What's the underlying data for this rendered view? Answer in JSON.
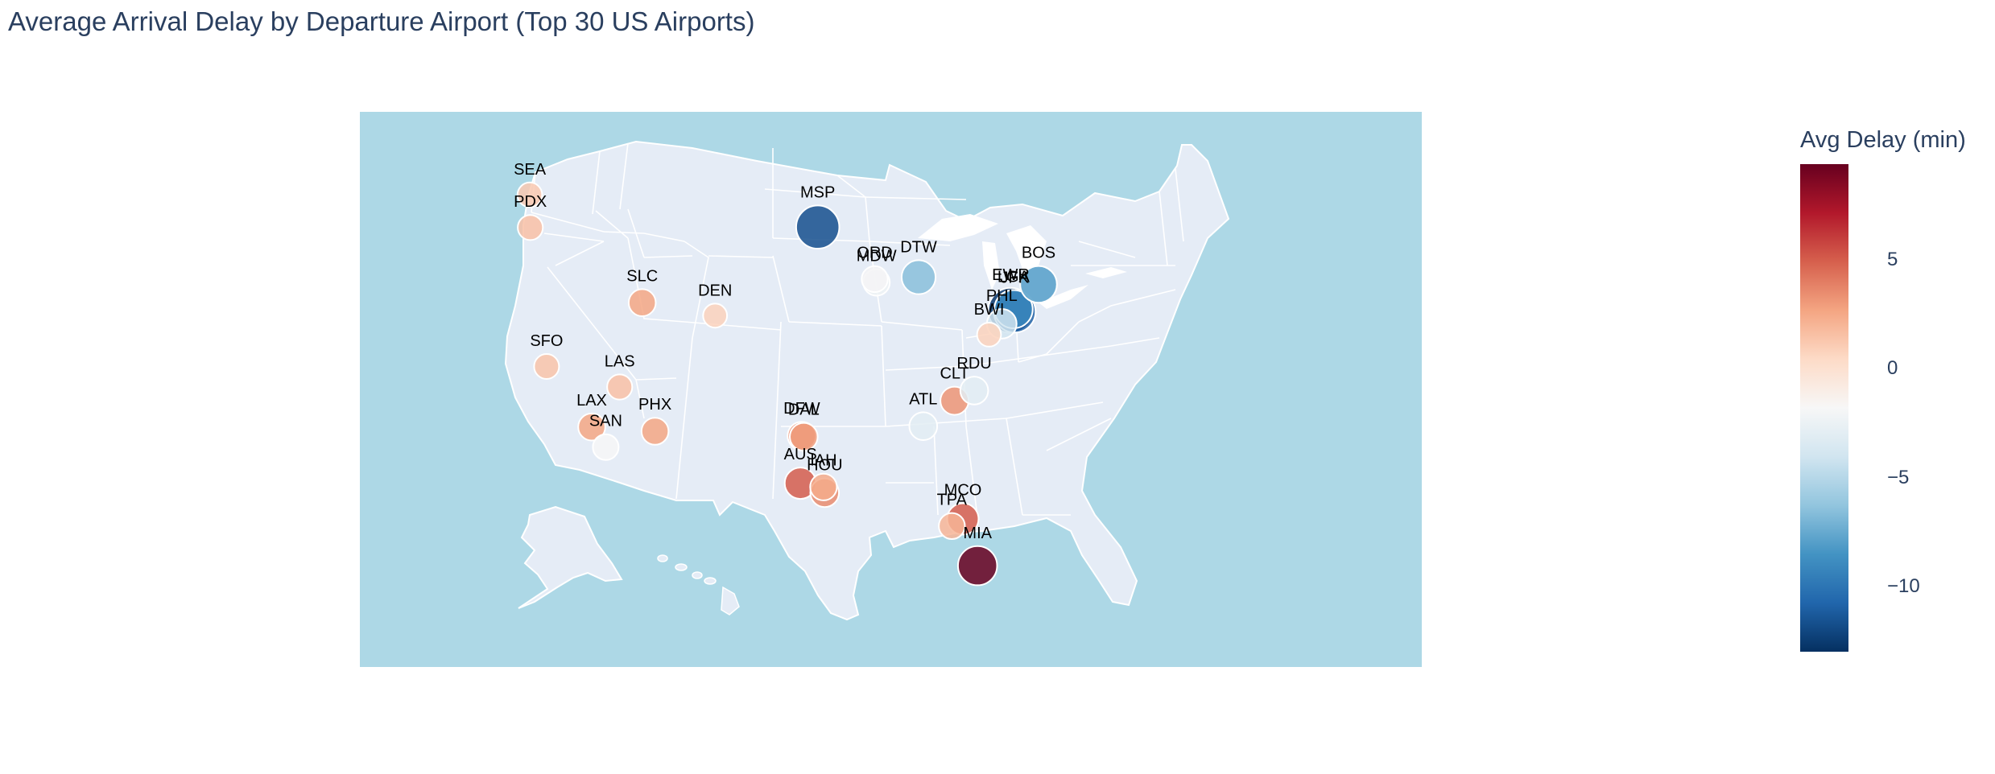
{
  "chart_data": {
    "type": "scatter",
    "title": "Average Arrival Delay by Departure Airport (Top 30 US Airports)",
    "projection": "albers usa",
    "colorbar": {
      "title": "Avg Delay (min)",
      "colorscale": "RdBu reversed",
      "range": [
        -13,
        9.4
      ],
      "ticks": [
        5,
        0,
        -5,
        -10
      ],
      "tick_labels": [
        "5",
        "0",
        "−5",
        "−10"
      ]
    },
    "colors": {
      "ocean": "#add8e6",
      "land": "#e5ecf6",
      "borders": "#ffffff",
      "title": "#2a3f5f"
    },
    "points": [
      {
        "code": "SEA",
        "delay": 1.2
      },
      {
        "code": "PDX",
        "delay": 1.5
      },
      {
        "code": "SFO",
        "delay": 1.4
      },
      {
        "code": "SLC",
        "delay": 2.6
      },
      {
        "code": "DEN",
        "delay": 0.8
      },
      {
        "code": "LAS",
        "delay": 1.5
      },
      {
        "code": "LAX",
        "delay": 2.6
      },
      {
        "code": "SAN",
        "delay": -1.8
      },
      {
        "code": "PHX",
        "delay": 2.6
      },
      {
        "code": "DFW",
        "delay": 3.3
      },
      {
        "code": "DAL",
        "delay": 3.0
      },
      {
        "code": "AUS",
        "delay": 5.0
      },
      {
        "code": "IAH",
        "delay": 2.4
      },
      {
        "code": "HOU",
        "delay": 3.5
      },
      {
        "code": "MSP",
        "delay": -11.7
      },
      {
        "code": "ORD",
        "delay": -2.0
      },
      {
        "code": "MDW",
        "delay": -2.3
      },
      {
        "code": "DTW",
        "delay": -6.5
      },
      {
        "code": "ATL",
        "delay": -3.0
      },
      {
        "code": "CLT",
        "delay": 3.2
      },
      {
        "code": "RDU",
        "delay": -3.0
      },
      {
        "code": "BWI",
        "delay": 0.8
      },
      {
        "code": "PHL",
        "delay": -4.0
      },
      {
        "code": "JFK",
        "delay": -11.0
      },
      {
        "code": "EWR",
        "delay": -12.8
      },
      {
        "code": "LGA",
        "delay": -9.0
      },
      {
        "code": "BOS",
        "delay": -8.0
      },
      {
        "code": "TPA",
        "delay": 2.0
      },
      {
        "code": "MCO",
        "delay": 5.0
      },
      {
        "code": "MIA",
        "delay": 9.4
      }
    ]
  }
}
